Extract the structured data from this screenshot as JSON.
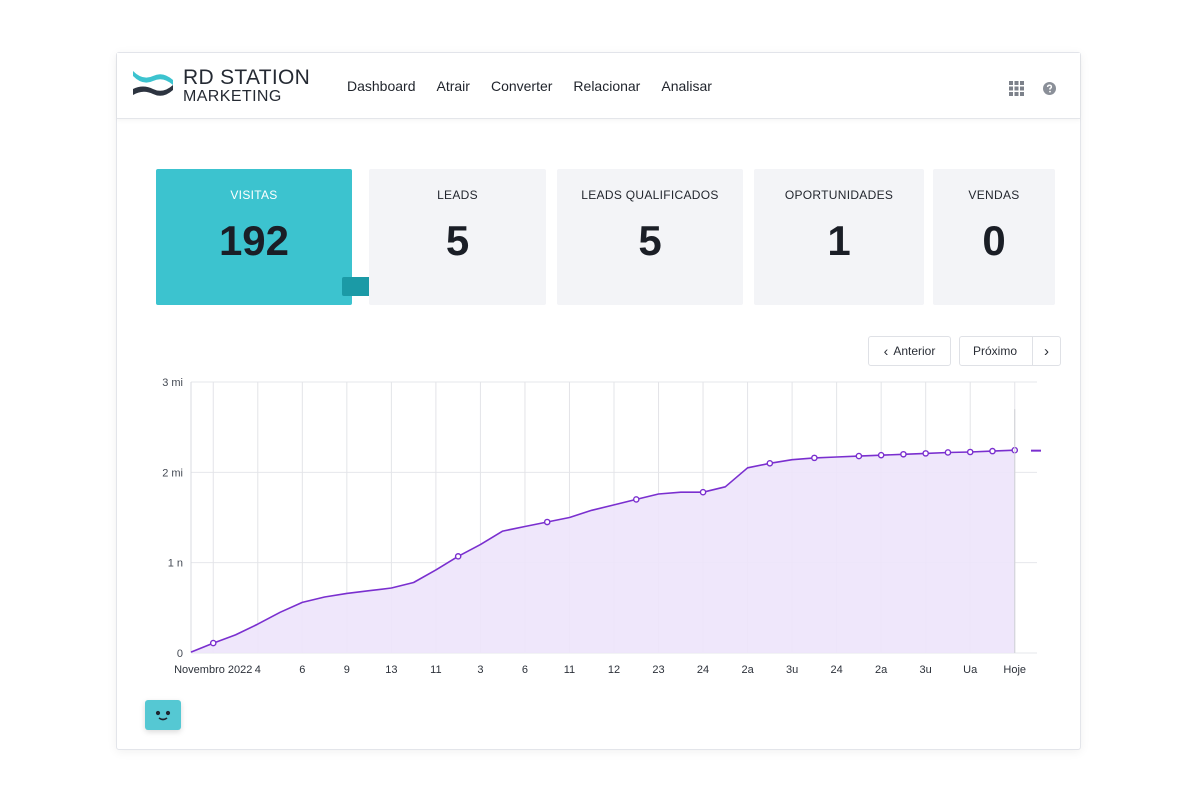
{
  "brand": {
    "line1": "RD STATION",
    "line2": "MARKETING",
    "logo_icon": "rd-station-logo-icon",
    "colors": {
      "teal": "#3cc3cf",
      "dark": "#2d3440"
    }
  },
  "nav": {
    "items": [
      "Dashboard",
      "Atrair",
      "Converter",
      "Relacionar",
      "Analisar"
    ]
  },
  "header_icons": {
    "apps": "grid-icon",
    "help": "help-circle-icon"
  },
  "metrics": [
    {
      "label": "VISITAS",
      "value": "192",
      "active": true
    },
    {
      "label": "LEADS",
      "value": "5"
    },
    {
      "label": "LEADS QUALIFICADOS",
      "value": "5"
    },
    {
      "label": "OPORTUNIDADES",
      "value": "1"
    },
    {
      "label": "VENDAS",
      "value": "0"
    }
  ],
  "pager": {
    "prev": "Anterior",
    "next": "Próximo",
    "prev_icon": "chevron-left-icon",
    "next_icon": "chevron-right-icon"
  },
  "chart_data": {
    "type": "area",
    "colors": {
      "line": "#7a2fcf",
      "fill": "#ede4fb"
    },
    "y_ticks": [
      {
        "value": 0,
        "label": "0"
      },
      {
        "value": 1000,
        "label": "1 n"
      },
      {
        "value": 2000,
        "label": "2 mi"
      },
      {
        "value": 3000,
        "label": "3 mi"
      }
    ],
    "ylim": [
      0,
      3000
    ],
    "x_tick_labels": [
      "Novembro 2022",
      "4",
      "6",
      "9",
      "13",
      "11",
      "3",
      "6",
      "11",
      "12",
      "23",
      "24",
      "2a",
      "3u",
      "24",
      "2a",
      "3u",
      "Ua",
      "Hoje"
    ],
    "x_tick_positions": [
      1,
      3,
      5,
      7,
      9,
      11,
      13,
      15,
      17,
      19,
      21,
      23,
      25,
      27,
      29,
      31,
      33,
      35,
      37
    ],
    "xlim": [
      0,
      38
    ],
    "series": [
      {
        "points": [
          [
            0,
            10
          ],
          [
            1,
            110
          ],
          [
            2,
            200
          ],
          [
            3,
            320
          ],
          [
            4,
            450
          ],
          [
            5,
            560
          ],
          [
            6,
            620
          ],
          [
            7,
            660
          ],
          [
            8,
            690
          ],
          [
            9,
            720
          ],
          [
            10,
            780
          ],
          [
            11,
            920
          ],
          [
            12,
            1070
          ],
          [
            13,
            1200
          ],
          [
            14,
            1350
          ],
          [
            15,
            1400
          ],
          [
            16,
            1450
          ],
          [
            17,
            1500
          ],
          [
            18,
            1580
          ],
          [
            19,
            1640
          ],
          [
            20,
            1700
          ],
          [
            21,
            1760
          ],
          [
            22,
            1780
          ],
          [
            23,
            1780
          ],
          [
            24,
            1840
          ],
          [
            25,
            2050
          ],
          [
            26,
            2100
          ],
          [
            27,
            2140
          ],
          [
            28,
            2160
          ],
          [
            29,
            2170
          ],
          [
            30,
            2180
          ],
          [
            31,
            2190
          ],
          [
            32,
            2200
          ],
          [
            33,
            2210
          ],
          [
            34,
            2220
          ],
          [
            35,
            2225
          ],
          [
            36,
            2235
          ],
          [
            37,
            2245
          ]
        ],
        "markers_at": [
          1,
          12,
          16,
          20,
          23,
          26,
          28,
          30,
          31,
          32,
          33,
          34,
          35,
          36,
          37
        ]
      }
    ],
    "trailing_marker_y": 2240,
    "grid": "both"
  },
  "chat_widget": {
    "icon": "chat-face-icon"
  }
}
